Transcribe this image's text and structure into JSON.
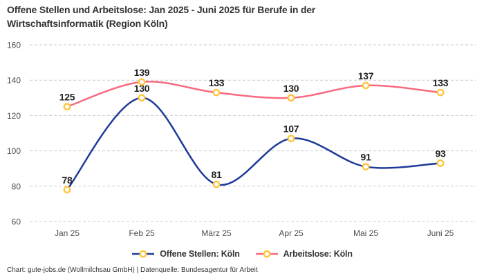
{
  "title": {
    "line1": "Offene Stellen und Arbeitslose: Jan 2025 - Juni 2025 für Berufe in der",
    "line2": "Wirtschaftsinformatik (Region Köln)"
  },
  "chart_data": {
    "type": "line",
    "categories": [
      "Jan 25",
      "Feb 25",
      "März 25",
      "Apr 25",
      "Mai 25",
      "Juni 25"
    ],
    "series": [
      {
        "name": "Offene Stellen: Köln",
        "values": [
          78,
          130,
          81,
          107,
          91,
          93
        ],
        "color": "#1e3a99"
      },
      {
        "name": "Arbeitslose: Köln",
        "values": [
          125,
          139,
          133,
          130,
          137,
          133
        ],
        "color": "#f8697f"
      }
    ],
    "marker": {
      "fill": "#ffffff",
      "stroke": "#ffc53d"
    },
    "ylim": [
      60,
      160
    ],
    "yticks": [
      60,
      80,
      100,
      120,
      140,
      160
    ],
    "grid": "horizontal-dashed",
    "legend_position": "bottom",
    "data_labels": true,
    "title": "Offene Stellen und Arbeitslose: Jan 2025 - Juni 2025 für Berufe in der Wirtschaftsinformatik (Region Köln)",
    "xlabel": "",
    "ylabel": ""
  },
  "footer": {
    "text": "Chart: gute-jobs.de (Wollmilchsau GmbH) | Datenquelle: Bundesagentur für Arbeit"
  },
  "colors": {
    "gridline": "#cccccc",
    "axis_text": "#4d4d4d",
    "data_label_text": "#1f1f1f",
    "title_text": "#333333"
  }
}
